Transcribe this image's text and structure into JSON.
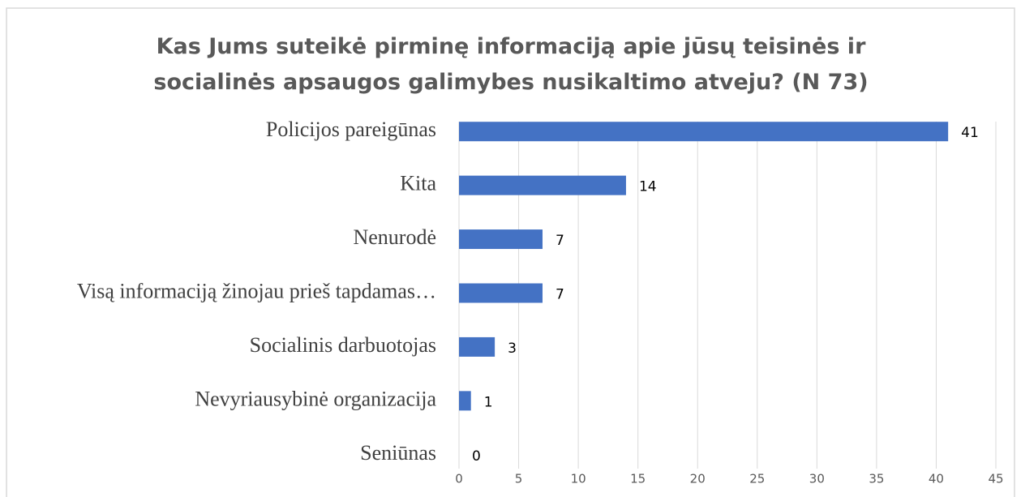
{
  "chart_data": {
    "type": "barh",
    "title": "Kas Jums suteikė pirminę informaciją apie jūsų teisinės ir socialinės apsaugos galimybes nusikaltimo atveju? (N 73)",
    "categories": [
      "Policijos pareigūnas",
      "Kita",
      "Nenurodė",
      "Visą informaciją žinojau prieš tapdamas…",
      "Socialinis darbuotojas",
      "Nevyriausybinė organizacija",
      "Seniūnas"
    ],
    "values": [
      41,
      14,
      7,
      7,
      3,
      1,
      0
    ],
    "color": "#4472c4",
    "xlim": [
      0,
      45
    ],
    "xticks": [
      0,
      5,
      10,
      15,
      20,
      25,
      30,
      35,
      40,
      45
    ],
    "grid": true
  }
}
